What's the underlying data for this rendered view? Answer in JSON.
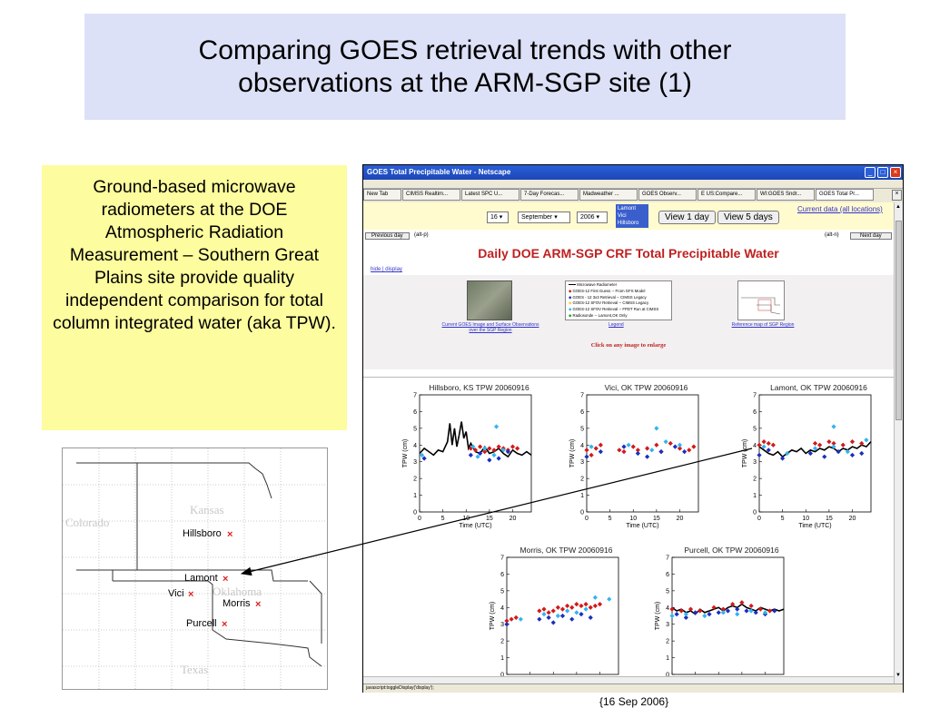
{
  "slide": {
    "title": "Comparing GOES retrieval trends with other observations at the ARM-SGP site (1)",
    "description": "Ground-based microwave radiometers at the DOE Atmospheric Radiation Measurement – Southern Great Plains site provide quality independent comparison for total column integrated water (aka TPW).",
    "caption": "{16 Sep 2006}"
  },
  "map": {
    "states": [
      "Kansas",
      "Colorado",
      "Oklahoma",
      "Texas"
    ],
    "sites": [
      "Hillsboro",
      "Lamont",
      "Vici",
      "Morris",
      "Purcell"
    ],
    "marker_color": "#e02020"
  },
  "browser": {
    "title": "GOES Total Precipitable Water - Netscape",
    "tabs": [
      "New Tab",
      "CIMSS Realtim...",
      "Latest SPC U...",
      "7-Day Forecas...",
      "Madweather ...",
      "GOES Observ...",
      "E US:Compare...",
      "WI:GOES Sndr...",
      "GOES Total Pr..."
    ],
    "day": "16",
    "month": "September",
    "year": "2006",
    "site_options": [
      "Lamont",
      "Vici",
      "Hillsboro"
    ],
    "view1": "View 1 day",
    "view5": "View 5 days",
    "current_link": "Current data (all locations)",
    "prev_day": "Previous day",
    "prev_key": "(alt-p)",
    "next_key": "(alt-n)",
    "next_day": "Next day",
    "heading": "Daily DOE ARM-SGP CRF Total Precipitable Water",
    "hide": "hide",
    "display": "display",
    "thumb1_caption": "Current GOES Image and Surface Observations over the SGP Region",
    "legend_caption": "Legend",
    "thumb2_caption": "Reference map of SGP Region",
    "click_note": "Click on any image to enlarge",
    "legend_items": [
      "Microwave Radiometer",
      "GOES-12 First Guess -- From GFS Model",
      "GOES - 12 3x3 Retrieval -- CIMSS Legacy",
      "GOES-12 SFOV Retrieval -- CIMSS Legacy",
      "GOES-12 SFOV Retrieval -- FPDT Run at CIMSS",
      "Radiosonde -- Lamont,OK Only"
    ],
    "status": "javascript:toggleDisplay('display');"
  },
  "colors": {
    "radiometer": "#000000",
    "first_guess": "#d11a1a",
    "legacy_3x3": "#1a2fbf",
    "sfov_legacy": "#f2d12e",
    "fpdt": "#32b4f0",
    "radiosonde": "#2a9a2a"
  },
  "chart_data": [
    {
      "type": "scatter",
      "title": "Hillsboro, KS   TPW 20060916",
      "xlabel": "Time (UTC)",
      "ylabel": "TPW (cm)",
      "xlim": [
        0,
        24
      ],
      "ylim": [
        0,
        7
      ],
      "xticks": [
        0,
        5,
        10,
        15,
        20
      ],
      "yticks": [
        0,
        1,
        2,
        3,
        4,
        5,
        6,
        7
      ],
      "radiometer": [
        [
          0,
          3.5
        ],
        [
          1,
          3.8
        ],
        [
          2,
          3.6
        ],
        [
          3,
          3.4
        ],
        [
          4,
          3.7
        ],
        [
          5,
          3.6
        ],
        [
          6,
          4.2
        ],
        [
          6.5,
          5.3
        ],
        [
          7,
          4.0
        ],
        [
          7.5,
          5.0
        ],
        [
          8,
          3.9
        ],
        [
          8.5,
          4.6
        ],
        [
          9,
          5.4
        ],
        [
          9.5,
          4.4
        ],
        [
          10,
          4.8
        ],
        [
          10.5,
          3.8
        ],
        [
          11,
          4.1
        ],
        [
          12,
          3.6
        ],
        [
          13,
          3.5
        ],
        [
          14,
          3.9
        ],
        [
          15,
          3.5
        ],
        [
          16,
          3.6
        ],
        [
          17,
          3.8
        ],
        [
          18,
          3.5
        ],
        [
          19,
          3.3
        ],
        [
          20,
          3.7
        ],
        [
          21,
          3.5
        ],
        [
          22,
          3.4
        ],
        [
          23,
          3.6
        ],
        [
          24,
          3.4
        ]
      ],
      "red": [
        [
          11,
          3.8
        ],
        [
          12,
          3.7
        ],
        [
          13,
          3.9
        ],
        [
          14,
          3.6
        ],
        [
          15,
          3.8
        ],
        [
          16,
          3.7
        ],
        [
          17,
          3.9
        ],
        [
          18,
          3.8
        ],
        [
          19,
          3.7
        ],
        [
          20,
          3.9
        ],
        [
          21,
          3.8
        ]
      ],
      "blue": [
        [
          1,
          3.2
        ],
        [
          11,
          3.4
        ],
        [
          13,
          3.5
        ],
        [
          15,
          3.1
        ],
        [
          17,
          3.2
        ],
        [
          19,
          3.6
        ]
      ],
      "cyan": [
        [
          0.5,
          3.4
        ],
        [
          11.5,
          3.9
        ],
        [
          12.5,
          3.3
        ],
        [
          14,
          3.8
        ],
        [
          16,
          3.4
        ],
        [
          18,
          3.7
        ],
        [
          16.5,
          5.1
        ]
      ]
    },
    {
      "type": "scatter",
      "title": "Vici, OK   TPW 20060916",
      "xlabel": "Time (UTC)",
      "ylabel": "TPW (cm)",
      "xlim": [
        0,
        24
      ],
      "ylim": [
        0,
        7
      ],
      "xticks": [
        0,
        5,
        10,
        15,
        20
      ],
      "yticks": [
        0,
        1,
        2,
        3,
        4,
        5,
        6,
        7
      ],
      "radiometer": [],
      "red": [
        [
          0,
          3.7
        ],
        [
          1,
          3.4
        ],
        [
          2,
          3.8
        ],
        [
          3,
          4.0
        ],
        [
          7,
          3.7
        ],
        [
          8,
          3.6
        ],
        [
          10,
          3.9
        ],
        [
          11,
          3.7
        ],
        [
          13,
          3.8
        ],
        [
          15,
          4.0
        ],
        [
          16,
          3.6
        ],
        [
          18,
          4.1
        ],
        [
          20,
          3.8
        ],
        [
          22,
          3.7
        ],
        [
          23,
          3.9
        ]
      ],
      "blue": [
        [
          0,
          3.3
        ],
        [
          3,
          3.6
        ],
        [
          8,
          3.9
        ],
        [
          11,
          3.5
        ],
        [
          13,
          3.3
        ],
        [
          16,
          3.6
        ],
        [
          19,
          3.9
        ],
        [
          21,
          3.6
        ]
      ],
      "cyan": [
        [
          1,
          3.9
        ],
        [
          9,
          4.0
        ],
        [
          14,
          3.7
        ],
        [
          17,
          4.2
        ],
        [
          20,
          4.0
        ],
        [
          15,
          5.0
        ]
      ]
    },
    {
      "type": "scatter",
      "title": "Lamont, OK   TPW 20060916",
      "xlabel": "Time (UTC)",
      "ylabel": "TPW (cm)",
      "xlim": [
        0,
        24
      ],
      "ylim": [
        0,
        7
      ],
      "xticks": [
        0,
        5,
        10,
        15,
        20
      ],
      "yticks": [
        0,
        1,
        2,
        3,
        4,
        5,
        6,
        7
      ],
      "radiometer": [
        [
          0,
          3.9
        ],
        [
          1,
          3.7
        ],
        [
          2,
          3.5
        ],
        [
          3,
          3.4
        ],
        [
          4,
          3.6
        ],
        [
          5,
          3.3
        ],
        [
          6,
          3.5
        ],
        [
          7,
          3.7
        ],
        [
          8,
          3.6
        ],
        [
          9,
          3.8
        ],
        [
          10,
          3.5
        ],
        [
          11,
          3.7
        ],
        [
          12,
          3.6
        ],
        [
          13,
          3.8
        ],
        [
          14,
          3.7
        ],
        [
          15,
          3.9
        ],
        [
          16,
          3.8
        ],
        [
          17,
          3.6
        ],
        [
          18,
          3.8
        ],
        [
          19,
          3.7
        ],
        [
          20,
          3.9
        ],
        [
          21,
          3.8
        ],
        [
          22,
          4.0
        ],
        [
          23,
          3.9
        ],
        [
          24,
          4.2
        ]
      ],
      "red": [
        [
          0,
          4.0
        ],
        [
          1,
          4.2
        ],
        [
          2,
          4.1
        ],
        [
          3,
          4.0
        ],
        [
          12,
          4.1
        ],
        [
          13,
          4.0
        ],
        [
          15,
          4.2
        ],
        [
          16,
          4.1
        ],
        [
          18,
          4.0
        ],
        [
          20,
          4.2
        ],
        [
          22,
          4.1
        ]
      ],
      "blue": [
        [
          0,
          3.4
        ],
        [
          2,
          3.7
        ],
        [
          5,
          3.2
        ],
        [
          11,
          3.5
        ],
        [
          14,
          3.3
        ],
        [
          17,
          3.6
        ],
        [
          20,
          3.4
        ],
        [
          22,
          3.5
        ]
      ],
      "cyan": [
        [
          1,
          3.9
        ],
        [
          6,
          3.5
        ],
        [
          12,
          3.8
        ],
        [
          16,
          3.9
        ],
        [
          19,
          3.6
        ],
        [
          16,
          5.1
        ],
        [
          23,
          4.3
        ]
      ]
    },
    {
      "type": "scatter",
      "title": "Morris, OK   TPW 20060916",
      "xlabel": "Time (UTC)",
      "ylabel": "TPW (cm)",
      "xlim": [
        0,
        24
      ],
      "ylim": [
        0,
        7
      ],
      "xticks": [
        0,
        5,
        10,
        15,
        20
      ],
      "yticks": [
        0,
        1,
        2,
        3,
        4,
        5,
        6,
        7
      ],
      "radiometer": [],
      "red": [
        [
          0,
          3.2
        ],
        [
          1,
          3.3
        ],
        [
          2,
          3.4
        ],
        [
          7,
          3.8
        ],
        [
          8,
          3.9
        ],
        [
          9,
          3.7
        ],
        [
          10,
          3.8
        ],
        [
          11,
          4.0
        ],
        [
          12,
          3.9
        ],
        [
          13,
          4.1
        ],
        [
          14,
          4.0
        ],
        [
          15,
          4.2
        ],
        [
          16,
          4.1
        ],
        [
          17,
          4.2
        ],
        [
          18,
          4.0
        ],
        [
          19,
          4.1
        ],
        [
          20,
          4.2
        ]
      ],
      "blue": [
        [
          0,
          3.0
        ],
        [
          7,
          3.3
        ],
        [
          9,
          3.4
        ],
        [
          10,
          3.1
        ],
        [
          12,
          3.5
        ],
        [
          14,
          3.3
        ],
        [
          16,
          3.6
        ],
        [
          18,
          3.4
        ]
      ],
      "cyan": [
        [
          3,
          3.3
        ],
        [
          8,
          3.6
        ],
        [
          11,
          3.5
        ],
        [
          13,
          3.8
        ],
        [
          15,
          3.7
        ],
        [
          17,
          3.9
        ],
        [
          19,
          4.6
        ],
        [
          22,
          4.5
        ]
      ]
    },
    {
      "type": "scatter",
      "title": "Purcell, OK   TPW 20060916",
      "xlabel": "Time (UTC)",
      "ylabel": "TPW (cm)",
      "xlim": [
        0,
        24
      ],
      "ylim": [
        0,
        7
      ],
      "xticks": [
        0,
        5,
        10,
        15,
        20
      ],
      "yticks": [
        0,
        1,
        2,
        3,
        4,
        5,
        6,
        7
      ],
      "radiometer": [
        [
          0,
          4.0
        ],
        [
          1,
          3.8
        ],
        [
          2,
          3.9
        ],
        [
          3,
          3.7
        ],
        [
          4,
          3.8
        ],
        [
          5,
          3.6
        ],
        [
          6,
          3.9
        ],
        [
          7,
          3.7
        ],
        [
          8,
          3.8
        ],
        [
          9,
          3.9
        ],
        [
          10,
          4.0
        ],
        [
          11,
          3.8
        ],
        [
          12,
          4.0
        ],
        [
          13,
          4.1
        ],
        [
          14,
          4.0
        ],
        [
          15,
          4.2
        ],
        [
          16,
          4.0
        ],
        [
          17,
          3.9
        ],
        [
          18,
          3.8
        ],
        [
          19,
          4.0
        ],
        [
          20,
          3.9
        ],
        [
          21,
          3.8
        ],
        [
          22,
          3.9
        ],
        [
          23,
          3.8
        ],
        [
          24,
          3.9
        ]
      ],
      "red": [
        [
          0,
          3.9
        ],
        [
          2,
          3.8
        ],
        [
          4,
          3.9
        ],
        [
          6,
          3.8
        ],
        [
          9,
          4.0
        ],
        [
          11,
          3.9
        ],
        [
          13,
          4.2
        ],
        [
          15,
          4.3
        ],
        [
          17,
          4.1
        ],
        [
          19,
          3.9
        ],
        [
          21,
          3.8
        ]
      ],
      "blue": [
        [
          1,
          3.6
        ],
        [
          3,
          3.4
        ],
        [
          5,
          3.7
        ],
        [
          8,
          3.6
        ],
        [
          10,
          3.7
        ],
        [
          12,
          3.8
        ],
        [
          14,
          3.9
        ],
        [
          16,
          3.8
        ],
        [
          18,
          3.7
        ],
        [
          20,
          3.6
        ],
        [
          22,
          3.8
        ]
      ],
      "cyan": [
        [
          0,
          3.5
        ],
        [
          3,
          3.6
        ],
        [
          7,
          3.5
        ],
        [
          11,
          3.7
        ],
        [
          14,
          3.6
        ],
        [
          17,
          3.8
        ],
        [
          20,
          3.7
        ]
      ]
    }
  ]
}
